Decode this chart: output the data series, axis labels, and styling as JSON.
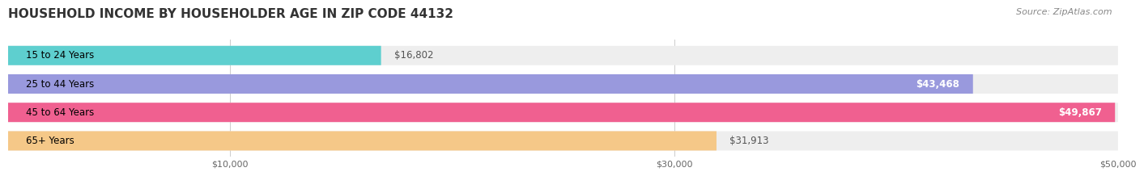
{
  "title": "HOUSEHOLD INCOME BY HOUSEHOLDER AGE IN ZIP CODE 44132",
  "source": "Source: ZipAtlas.com",
  "categories": [
    "15 to 24 Years",
    "25 to 44 Years",
    "45 to 64 Years",
    "65+ Years"
  ],
  "values": [
    16802,
    43468,
    49867,
    31913
  ],
  "bar_colors": [
    "#5ecfcf",
    "#9999dd",
    "#f06090",
    "#f5c888"
  ],
  "bar_bg_color": "#eeeeee",
  "value_labels": [
    "$16,802",
    "$43,468",
    "$49,867",
    "$31,913"
  ],
  "value_inside": [
    false,
    true,
    true,
    false
  ],
  "xlim": [
    0,
    50000
  ],
  "xticks": [
    10000,
    30000,
    50000
  ],
  "xtick_labels": [
    "$10,000",
    "$30,000",
    "$50,000"
  ],
  "title_fontsize": 11,
  "source_fontsize": 8,
  "label_fontsize": 8.5,
  "value_fontsize": 8.5,
  "background_color": "#ffffff",
  "bar_bg_full": 50000
}
